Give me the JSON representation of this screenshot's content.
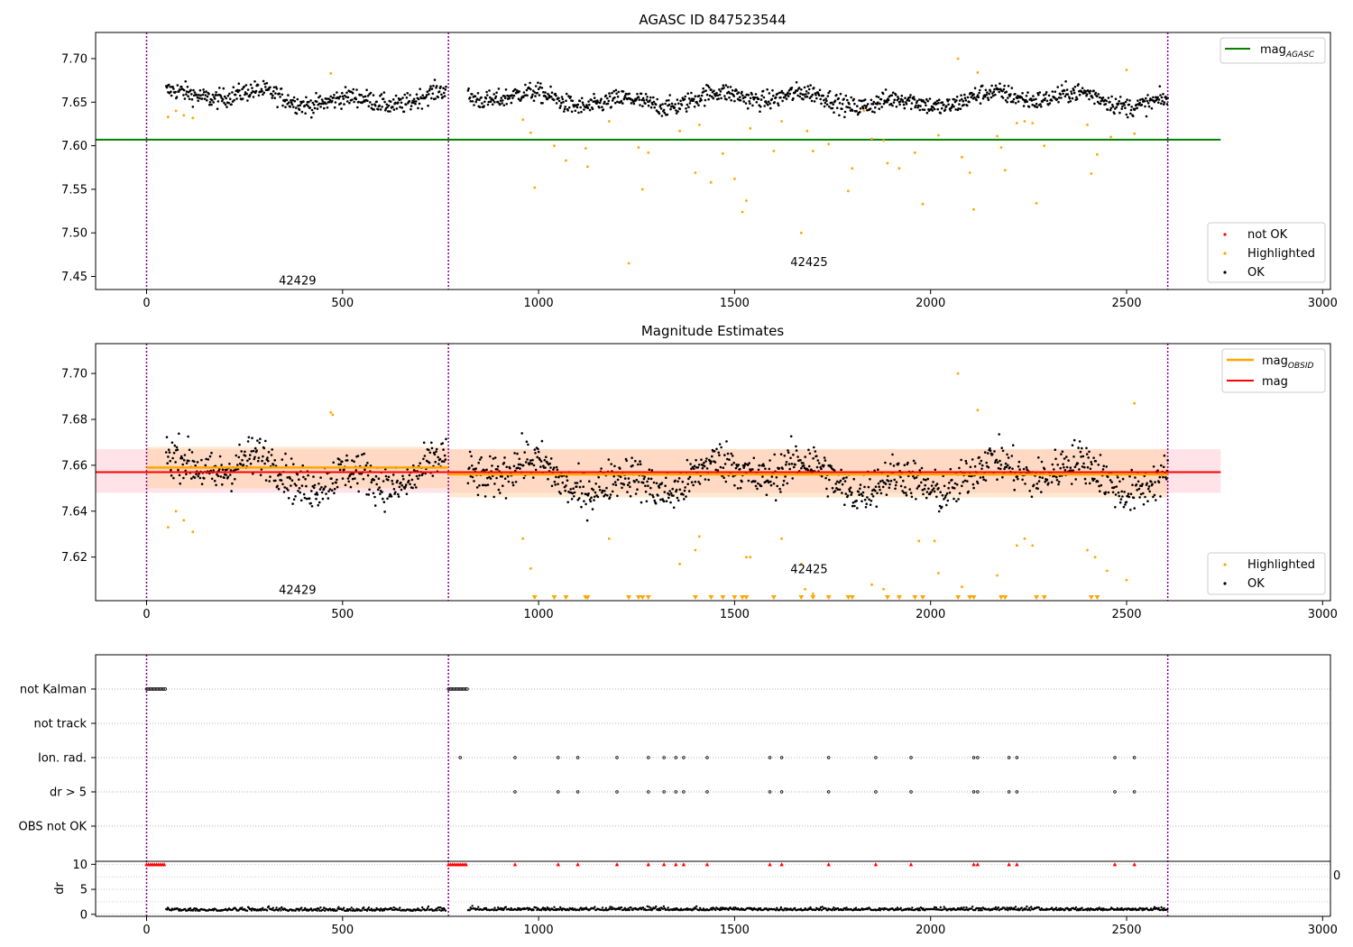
{
  "chart_data": [
    {
      "type": "scatter",
      "title": "AGASC ID 847523544",
      "xlim": [
        -130,
        3020
      ],
      "ylim": [
        7.435,
        7.73
      ],
      "xticks": [
        0,
        500,
        1000,
        1500,
        2000,
        2500,
        3000
      ],
      "yticks": [
        7.45,
        7.5,
        7.55,
        7.6,
        7.65,
        7.7
      ],
      "ytick_labels": [
        "7.45",
        "7.50",
        "7.55",
        "7.60",
        "7.65",
        "7.70"
      ],
      "obs_boundaries": [
        0,
        770,
        2605
      ],
      "obs_labels": [
        {
          "text": "42429",
          "x": 385,
          "y": 7.445
        },
        {
          "text": "42425",
          "x": 1690,
          "y": 7.466
        }
      ],
      "reference_lines": [
        {
          "name": "mag_AGASC",
          "y": 7.607,
          "x_start": -130,
          "x_end": 2740,
          "color": "#008000"
        }
      ],
      "series": [
        {
          "name": "OK",
          "color": "#000000",
          "segments": [
            {
              "x_start": 50,
              "x_end": 765,
              "level": 7.655,
              "spread": 0.012
            },
            {
              "x_start": 820,
              "x_end": 2605,
              "level": 7.653,
              "spread": 0.012
            }
          ]
        },
        {
          "name": "Highlighted",
          "color": "#ffa500",
          "x": [
            55,
            75,
            95,
            118,
            470,
            960,
            980,
            990,
            1040,
            1070,
            1120,
            1125,
            1180,
            1230,
            1255,
            1265,
            1280,
            1360,
            1400,
            1410,
            1440,
            1470,
            1500,
            1520,
            1530,
            1540,
            1600,
            1620,
            1670,
            1685,
            1700,
            1740,
            1790,
            1800,
            1830,
            1850,
            1880,
            1890,
            1920,
            1960,
            1980,
            2020,
            2070,
            2080,
            2100,
            2110,
            2120,
            2170,
            2180,
            2190,
            2220,
            2240,
            2260,
            2270,
            2290,
            2400,
            2410,
            2425,
            2460,
            2500,
            2520
          ],
          "y": [
            7.633,
            7.64,
            7.635,
            7.632,
            7.683,
            7.63,
            7.615,
            7.552,
            7.6,
            7.583,
            7.597,
            7.576,
            7.628,
            7.465,
            7.598,
            7.55,
            7.592,
            7.617,
            7.569,
            7.624,
            7.558,
            7.591,
            7.562,
            7.524,
            7.537,
            7.62,
            7.594,
            7.628,
            7.5,
            7.617,
            7.594,
            7.602,
            7.548,
            7.574,
            7.64,
            7.608,
            7.606,
            7.58,
            7.574,
            7.592,
            7.533,
            7.612,
            7.7,
            7.587,
            7.569,
            7.527,
            7.684,
            7.611,
            7.598,
            7.572,
            7.626,
            7.628,
            7.626,
            7.534,
            7.6,
            7.624,
            7.568,
            7.59,
            7.61,
            7.687,
            7.614
          ]
        },
        {
          "name": "not OK",
          "color": "#ff0000",
          "x": [],
          "y": []
        }
      ],
      "legend_upper": [
        "mag_AGASC"
      ],
      "legend_lower": [
        "not OK",
        "Highlighted",
        "OK"
      ]
    },
    {
      "type": "scatter",
      "title": "Magnitude Estimates",
      "xlim": [
        -130,
        3020
      ],
      "ylim": [
        7.601,
        7.713
      ],
      "xticks": [
        0,
        500,
        1000,
        1500,
        2000,
        2500,
        3000
      ],
      "yticks": [
        7.62,
        7.64,
        7.66,
        7.68,
        7.7
      ],
      "ytick_labels": [
        "7.62",
        "7.64",
        "7.66",
        "7.68",
        "7.70"
      ],
      "obs_boundaries": [
        0,
        770,
        2605
      ],
      "obs_labels": [
        {
          "text": "42429",
          "x": 385,
          "y": 7.6055
        },
        {
          "text": "42425",
          "x": 1690,
          "y": 7.6145
        }
      ],
      "mag": {
        "value": 7.657,
        "band": [
          7.648,
          7.667
        ],
        "x_start": -130,
        "x_end": 2740,
        "color": "#ff0000"
      },
      "mag_obsid": [
        {
          "x_start": 0,
          "x_end": 770,
          "value": 7.659,
          "band": [
            7.65,
            7.668
          ]
        },
        {
          "x_start": 770,
          "x_end": 2605,
          "value": 7.656,
          "band": [
            7.646,
            7.667
          ]
        }
      ],
      "series": [
        {
          "name": "OK",
          "color": "#000000",
          "segments": [
            {
              "x_start": 50,
              "x_end": 765,
              "level": 7.657,
              "spread": 0.01
            },
            {
              "x_start": 820,
              "x_end": 2605,
              "level": 7.655,
              "spread": 0.01
            }
          ]
        },
        {
          "name": "Highlighted",
          "color": "#ffa500",
          "x": [
            55,
            75,
            95,
            118,
            470,
            475,
            960,
            980,
            1180,
            1360,
            1400,
            1410,
            1530,
            1540,
            1620,
            1670,
            1680,
            1700,
            1850,
            1880,
            1970,
            2010,
            2020,
            2070,
            2080,
            2120,
            2170,
            2220,
            2240,
            2260,
            2400,
            2420,
            2500,
            2520,
            2450
          ],
          "y": [
            7.633,
            7.64,
            7.636,
            7.631,
            7.683,
            7.682,
            7.628,
            7.615,
            7.628,
            7.617,
            7.623,
            7.629,
            7.62,
            7.62,
            7.628,
            7.617,
            7.606,
            7.604,
            7.608,
            7.606,
            7.627,
            7.627,
            7.613,
            7.7,
            7.607,
            7.684,
            7.612,
            7.625,
            7.628,
            7.625,
            7.623,
            7.62,
            7.61,
            7.687,
            7.614
          ]
        }
      ],
      "below_range_markers_x": [
        990,
        1040,
        1070,
        1120,
        1125,
        1230,
        1255,
        1265,
        1280,
        1400,
        1440,
        1470,
        1500,
        1520,
        1530,
        1600,
        1670,
        1700,
        1740,
        1790,
        1800,
        1890,
        1920,
        1960,
        1980,
        2070,
        2100,
        2110,
        2180,
        2190,
        2270,
        2290,
        2410,
        2425
      ],
      "legend_upper": [
        "mag_OBSID",
        "mag"
      ],
      "legend_lower": [
        "Highlighted",
        "OK"
      ]
    },
    {
      "type": "scatter",
      "title": "",
      "xlim": [
        -130,
        3020
      ],
      "category_rows": [
        "not Kalman",
        "not track",
        "Ion. rad.",
        "dr > 5",
        "OBS not OK"
      ],
      "flags": {
        "not Kalman": {
          "ranges": [
            [
              0,
              50
            ],
            [
              770,
              820
            ]
          ]
        },
        "not track": {
          "ranges": []
        },
        "Ion. rad.": {
          "x": [
            800,
            940,
            1050,
            1100,
            1200,
            1280,
            1320,
            1350,
            1370,
            1430,
            1590,
            1620,
            1740,
            1860,
            1950,
            2110,
            2120,
            2200,
            2220,
            2470,
            2520
          ]
        },
        "dr > 5": {
          "x": [
            940,
            1050,
            1100,
            1200,
            1280,
            1320,
            1350,
            1370,
            1430,
            1590,
            1620,
            1740,
            1860,
            1950,
            2110,
            2120,
            2200,
            2220,
            2470,
            2520
          ]
        },
        "OBS not OK": {
          "x": []
        }
      }
    },
    {
      "type": "scatter",
      "xlim": [
        -130,
        3020
      ],
      "ylim": [
        -0.4,
        10.6
      ],
      "ylabel": "dr",
      "yticks": [
        0,
        5,
        10
      ],
      "ytick_labels": [
        "0",
        "5",
        "10"
      ],
      "xticks": [
        0,
        500,
        1000,
        1500,
        2000,
        2500,
        3000
      ],
      "xtick_labels": [
        "0",
        "500",
        "1000",
        "1500",
        "2000",
        "2500",
        "3000"
      ],
      "clipped_tick_label": "0",
      "series": [
        {
          "name": "dr",
          "color": "#000000",
          "segments": [
            {
              "x_start": 50,
              "x_end": 765,
              "level": 0.7,
              "spread": 0.3
            },
            {
              "x_start": 820,
              "x_end": 2605,
              "level": 0.8,
              "spread": 0.3
            }
          ]
        },
        {
          "name": "dr > 5",
          "color": "#ff0000",
          "marker": "triangle",
          "y": 10,
          "x": [
            0,
            5,
            10,
            15,
            20,
            25,
            30,
            35,
            40,
            45,
            770,
            775,
            780,
            785,
            790,
            795,
            800,
            805,
            810,
            815,
            940,
            1050,
            1100,
            1200,
            1280,
            1320,
            1350,
            1370,
            1430,
            1590,
            1620,
            1740,
            1860,
            1950,
            2110,
            2120,
            2200,
            2220,
            2470,
            2520
          ]
        }
      ],
      "obs_boundaries": [
        0,
        770,
        2605
      ]
    }
  ],
  "legend_text": {
    "mag_agasc": "mag",
    "mag_agasc_sub": "AGASC",
    "mag_obsid": "mag",
    "mag_obsid_sub": "OBSID",
    "mag": "mag",
    "not_ok": "not OK",
    "highlighted": "Highlighted",
    "ok": "OK"
  },
  "colors": {
    "ok": "#000000",
    "highlighted": "#ffa500",
    "not_ok": "#ff0000",
    "mag_agasc": "#008000",
    "mag": "#ff0000",
    "mag_obsid": "#ffa500",
    "obs_boundary": "#800080",
    "band_mag": "#ffc0cb",
    "band_obsid": "#ffcc99"
  }
}
